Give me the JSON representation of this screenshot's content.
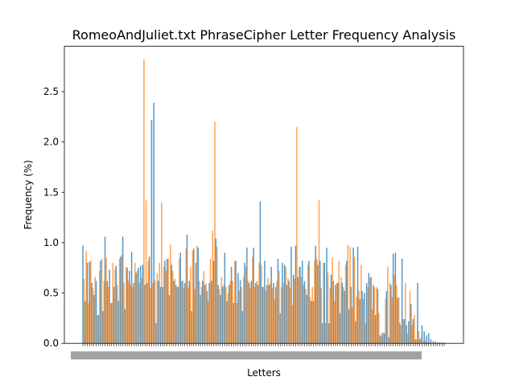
{
  "chart_data": {
    "type": "bar",
    "title": "RomeoAndJuliet.txt PhraseCipher Letter Frequency Analysis",
    "xlabel": "Letters",
    "ylabel": "Frequency (%)",
    "ylim": [
      0,
      2.95
    ],
    "yticks": [
      "0.0",
      "0.5",
      "1.0",
      "1.5",
      "2.0",
      "2.5"
    ],
    "xtick_labels_note": "dense overlapping character tick labels rendered illegibly",
    "grid": false,
    "colors": {
      "series_a": "#1f77b4",
      "series_b": "#ff7f0e"
    },
    "series": [
      {
        "values": [
          0.97,
          0.42,
          0.8,
          0.81,
          0.6,
          0.48,
          0.62,
          0.28,
          0.82,
          0.32,
          1.06,
          0.62,
          0.73,
          0.4,
          0.56,
          0.77,
          0.42,
          0.86,
          1.06,
          0.34,
          0.75,
          0.72,
          0.91,
          0.6,
          0.7,
          0.75,
          0.77,
          0.78,
          0.58,
          0.6,
          0.86,
          2.22,
          2.39,
          0.2,
          0.62,
          0.56,
          0.56,
          0.82,
          0.84,
          0.48,
          0.78,
          0.62,
          0.58,
          0.56,
          0.9,
          0.62,
          0.6,
          1.08,
          0.62,
          0.32,
          0.94,
          0.8,
          0.95,
          0.48,
          0.62,
          0.58,
          0.52,
          0.6,
          0.62,
          0.82,
          1.04,
          0.58,
          0.48,
          0.56,
          0.9,
          0.42,
          0.58,
          0.76,
          0.4,
          0.82,
          0.7,
          0.63,
          0.32,
          0.8,
          0.95,
          0.6,
          0.62,
          0.95,
          0.6,
          0.58,
          1.41,
          0.56,
          0.82,
          0.58,
          0.58,
          0.76,
          0.6,
          0.56,
          0.84,
          0.3,
          0.8,
          0.78,
          0.58,
          0.62,
          0.96,
          0.68,
          0.97,
          0.66,
          0.76,
          0.82,
          0.62,
          0.48,
          0.82,
          0.42,
          0.42,
          0.97,
          0.78,
          0.82,
          0.2,
          0.8,
          0.95,
          0.2,
          0.68,
          0.62,
          0.58,
          0.6,
          0.3,
          0.6,
          0.52,
          0.82,
          0.34,
          0.56,
          0.95,
          0.22,
          0.96,
          0.44,
          0.52,
          0.5,
          0.6,
          0.7,
          0.66,
          0.58,
          0.28,
          0.54,
          0.08,
          0.1,
          0.1,
          0.52,
          0.06,
          0.58,
          0.89,
          0.9,
          0.45,
          0.2,
          0.84,
          0.24,
          0.18,
          0.22,
          0.39,
          0.24,
          0.04,
          0.6,
          0.04,
          0.18,
          0.12,
          0.08,
          0.1,
          0.04,
          0.02,
          0.02,
          0.01,
          0.01,
          0.01,
          0.01
        ],
        "x_offset": 0
      },
      {
        "values": [
          0.64,
          0.92,
          0.4,
          0.82,
          0.55,
          0.66,
          0.28,
          0.72,
          0.84,
          0.62,
          0.85,
          0.56,
          0.4,
          0.8,
          0.74,
          0.58,
          0.84,
          0.88,
          0.6,
          0.76,
          0.62,
          0.58,
          0.56,
          0.8,
          0.72,
          0.6,
          0.65,
          2.82,
          1.42,
          0.82,
          0.55,
          0.6,
          0.62,
          0.7,
          0.8,
          1.4,
          0.76,
          0.72,
          0.84,
          0.98,
          0.72,
          0.64,
          0.56,
          0.84,
          0.62,
          0.55,
          0.94,
          0.55,
          0.76,
          0.92,
          0.54,
          0.97,
          0.62,
          0.56,
          0.72,
          0.6,
          0.42,
          0.84,
          1.12,
          2.2,
          0.96,
          0.54,
          0.66,
          0.58,
          0.56,
          0.5,
          0.62,
          0.62,
          0.82,
          0.4,
          0.52,
          0.56,
          0.66,
          0.76,
          0.62,
          0.55,
          0.86,
          0.56,
          0.62,
          0.8,
          0.78,
          0.56,
          0.52,
          0.65,
          0.6,
          0.55,
          0.44,
          0.62,
          0.72,
          0.56,
          0.6,
          0.76,
          0.65,
          0.55,
          0.38,
          0.64,
          2.15,
          0.76,
          0.66,
          0.58,
          0.54,
          0.78,
          0.46,
          0.56,
          0.82,
          0.84,
          1.42,
          0.55,
          0.8,
          0.2,
          0.7,
          0.55,
          0.85,
          0.42,
          0.6,
          0.82,
          0.66,
          0.56,
          0.78,
          0.98,
          0.96,
          0.36,
          0.86,
          0.46,
          0.52,
          0.78,
          0.44,
          0.2,
          0.56,
          0.65,
          0.34,
          0.56,
          0.56,
          0.3,
          0.07,
          0.11,
          0.44,
          0.76,
          0.6,
          0.46,
          0.68,
          0.58,
          0.46,
          0.18,
          0.24,
          0.6,
          0.1,
          0.52,
          0.18,
          0.28,
          0.04,
          0.12,
          0.06,
          0.02,
          0.02,
          0.01,
          0.01,
          0.0,
          0.0,
          0.0
        ],
        "x_offset": 1.5
      }
    ]
  }
}
